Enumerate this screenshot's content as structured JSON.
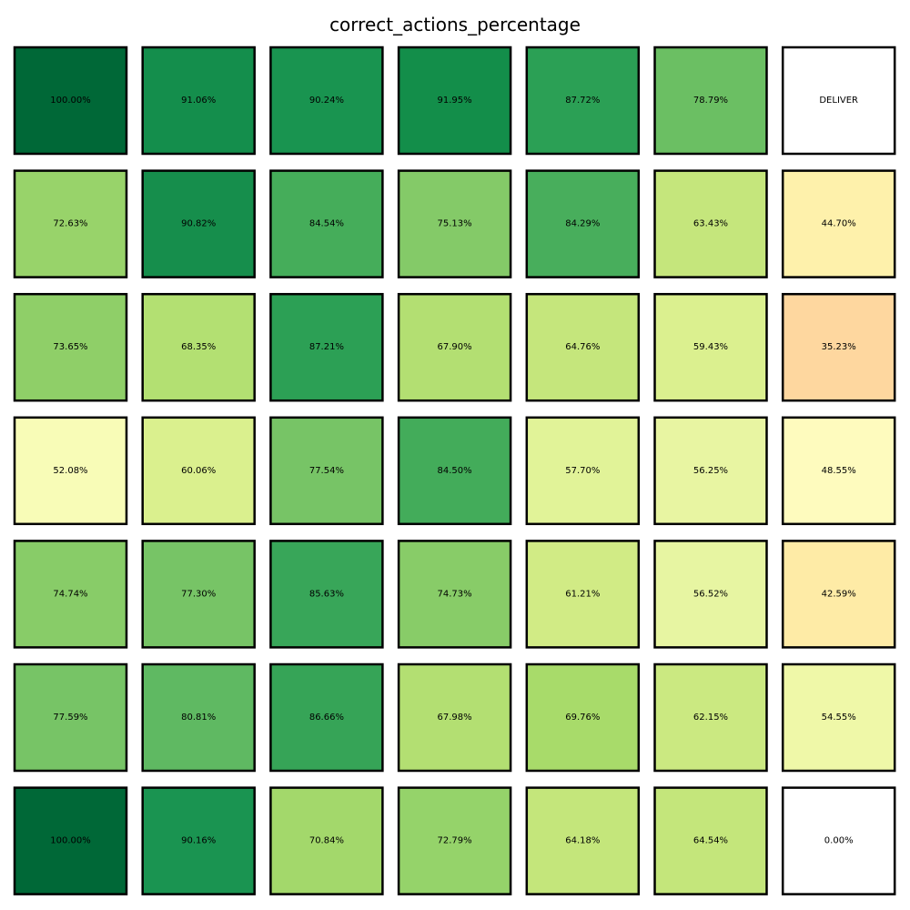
{
  "chart_data": {
    "type": "heatmap",
    "title": "correct_actions_percentage",
    "xlabel": "",
    "ylabel": "",
    "grid": false,
    "legend": "none",
    "colormap": "RdYlGn",
    "value_range": [
      0,
      100
    ],
    "rows": [
      [
        {
          "value": 100.0,
          "label": "100.00%",
          "color": "#006837"
        },
        {
          "value": 91.06,
          "label": "91.06%",
          "color": "#148e4c"
        },
        {
          "value": 90.24,
          "label": "90.24%",
          "color": "#199450"
        },
        {
          "value": 91.95,
          "label": "91.95%",
          "color": "#138e4a"
        },
        {
          "value": 87.72,
          "label": "87.72%",
          "color": "#2ba055"
        },
        {
          "value": 78.79,
          "label": "78.79%",
          "color": "#6bbf63"
        },
        {
          "value": null,
          "label": "DELIVER",
          "color": "#ffffff"
        }
      ],
      [
        {
          "value": 72.63,
          "label": "72.63%",
          "color": "#98d36a"
        },
        {
          "value": 90.82,
          "label": "90.82%",
          "color": "#168e4c"
        },
        {
          "value": 84.54,
          "label": "84.54%",
          "color": "#45ad5a"
        },
        {
          "value": 75.13,
          "label": "75.13%",
          "color": "#84ca68"
        },
        {
          "value": 84.29,
          "label": "84.29%",
          "color": "#48ae5c"
        },
        {
          "value": 63.43,
          "label": "63.43%",
          "color": "#c5e67c"
        },
        {
          "value": 44.7,
          "label": "44.70%",
          "color": "#fef1ab"
        }
      ],
      [
        {
          "value": 73.65,
          "label": "73.65%",
          "color": "#8fcf68"
        },
        {
          "value": 68.35,
          "label": "68.35%",
          "color": "#b3e072"
        },
        {
          "value": 87.21,
          "label": "87.21%",
          "color": "#2ca055"
        },
        {
          "value": 67.9,
          "label": "67.90%",
          "color": "#b3df72"
        },
        {
          "value": 64.76,
          "label": "64.76%",
          "color": "#c5e67c"
        },
        {
          "value": 59.43,
          "label": "59.43%",
          "color": "#dbf08f"
        },
        {
          "value": 35.23,
          "label": "35.23%",
          "color": "#fed79f"
        }
      ],
      [
        {
          "value": 52.08,
          "label": "52.08%",
          "color": "#f8fcb7"
        },
        {
          "value": 60.06,
          "label": "60.06%",
          "color": "#daf08e"
        },
        {
          "value": 77.54,
          "label": "77.54%",
          "color": "#77c466"
        },
        {
          "value": 84.5,
          "label": "84.50%",
          "color": "#43ac5a"
        },
        {
          "value": 57.7,
          "label": "57.70%",
          "color": "#e1f398"
        },
        {
          "value": 56.25,
          "label": "56.25%",
          "color": "#e8f5a2"
        },
        {
          "value": 48.55,
          "label": "48.55%",
          "color": "#fefbbe"
        }
      ],
      [
        {
          "value": 74.74,
          "label": "74.74%",
          "color": "#88cc68"
        },
        {
          "value": 77.3,
          "label": "77.30%",
          "color": "#77c466"
        },
        {
          "value": 85.63,
          "label": "85.63%",
          "color": "#38a659"
        },
        {
          "value": 74.73,
          "label": "74.73%",
          "color": "#88cc68"
        },
        {
          "value": 61.21,
          "label": "61.21%",
          "color": "#d1eb85"
        },
        {
          "value": 56.52,
          "label": "56.52%",
          "color": "#e7f5a2"
        },
        {
          "value": 42.59,
          "label": "42.59%",
          "color": "#feeba6"
        }
      ],
      [
        {
          "value": 77.59,
          "label": "77.59%",
          "color": "#77c466"
        },
        {
          "value": 80.81,
          "label": "80.81%",
          "color": "#5fb962"
        },
        {
          "value": 86.66,
          "label": "86.66%",
          "color": "#36a457"
        },
        {
          "value": 67.98,
          "label": "67.98%",
          "color": "#b3df72"
        },
        {
          "value": 69.76,
          "label": "69.76%",
          "color": "#a8db6a"
        },
        {
          "value": 62.15,
          "label": "62.15%",
          "color": "#cbe981"
        },
        {
          "value": 54.55,
          "label": "54.55%",
          "color": "#eff8a8"
        }
      ],
      [
        {
          "value": 100.0,
          "label": "100.00%",
          "color": "#006837"
        },
        {
          "value": 90.16,
          "label": "90.16%",
          "color": "#1a9451"
        },
        {
          "value": 70.84,
          "label": "70.84%",
          "color": "#a3d86b"
        },
        {
          "value": 72.79,
          "label": "72.79%",
          "color": "#95d36a"
        },
        {
          "value": 64.18,
          "label": "64.18%",
          "color": "#c4e67b"
        },
        {
          "value": 64.54,
          "label": "64.54%",
          "color": "#c4e67b"
        },
        {
          "value": 0.0,
          "label": "0.00%",
          "color": "#ffffff"
        }
      ]
    ]
  }
}
